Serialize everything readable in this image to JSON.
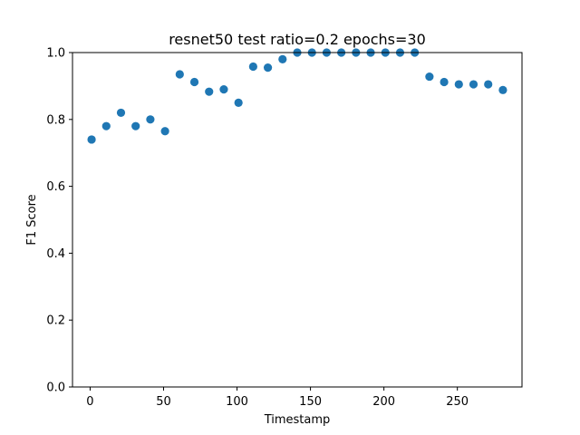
{
  "chart_data": {
    "type": "scatter",
    "title": "resnet50 test ratio=0.2 epochs=30",
    "xlabel": "Timestamp",
    "ylabel": "F1 Score",
    "xlim": [
      -12,
      294
    ],
    "ylim": [
      0.0,
      1.0
    ],
    "xticks": [
      0,
      50,
      100,
      150,
      200,
      250
    ],
    "yticks": [
      0.0,
      0.2,
      0.4,
      0.6,
      0.8,
      1.0
    ],
    "xtick_labels": [
      "0",
      "50",
      "100",
      "150",
      "200",
      "250"
    ],
    "ytick_labels": [
      "0.0",
      "0.2",
      "0.4",
      "0.6",
      "0.8",
      "1.0"
    ],
    "grid": false,
    "marker_color": "#1f77b4",
    "x": [
      1,
      11,
      21,
      31,
      41,
      51,
      61,
      71,
      81,
      91,
      101,
      111,
      121,
      131,
      141,
      151,
      161,
      171,
      181,
      191,
      201,
      211,
      221,
      231,
      241,
      251,
      261,
      271,
      281
    ],
    "y": [
      0.74,
      0.78,
      0.82,
      0.78,
      0.8,
      0.765,
      0.935,
      0.912,
      0.883,
      0.89,
      0.85,
      0.958,
      0.955,
      0.98,
      1.0,
      1.0,
      1.0,
      1.0,
      1.0,
      1.0,
      1.0,
      1.0,
      1.0,
      0.928,
      0.912,
      0.905,
      0.905,
      0.905,
      0.888
    ]
  }
}
